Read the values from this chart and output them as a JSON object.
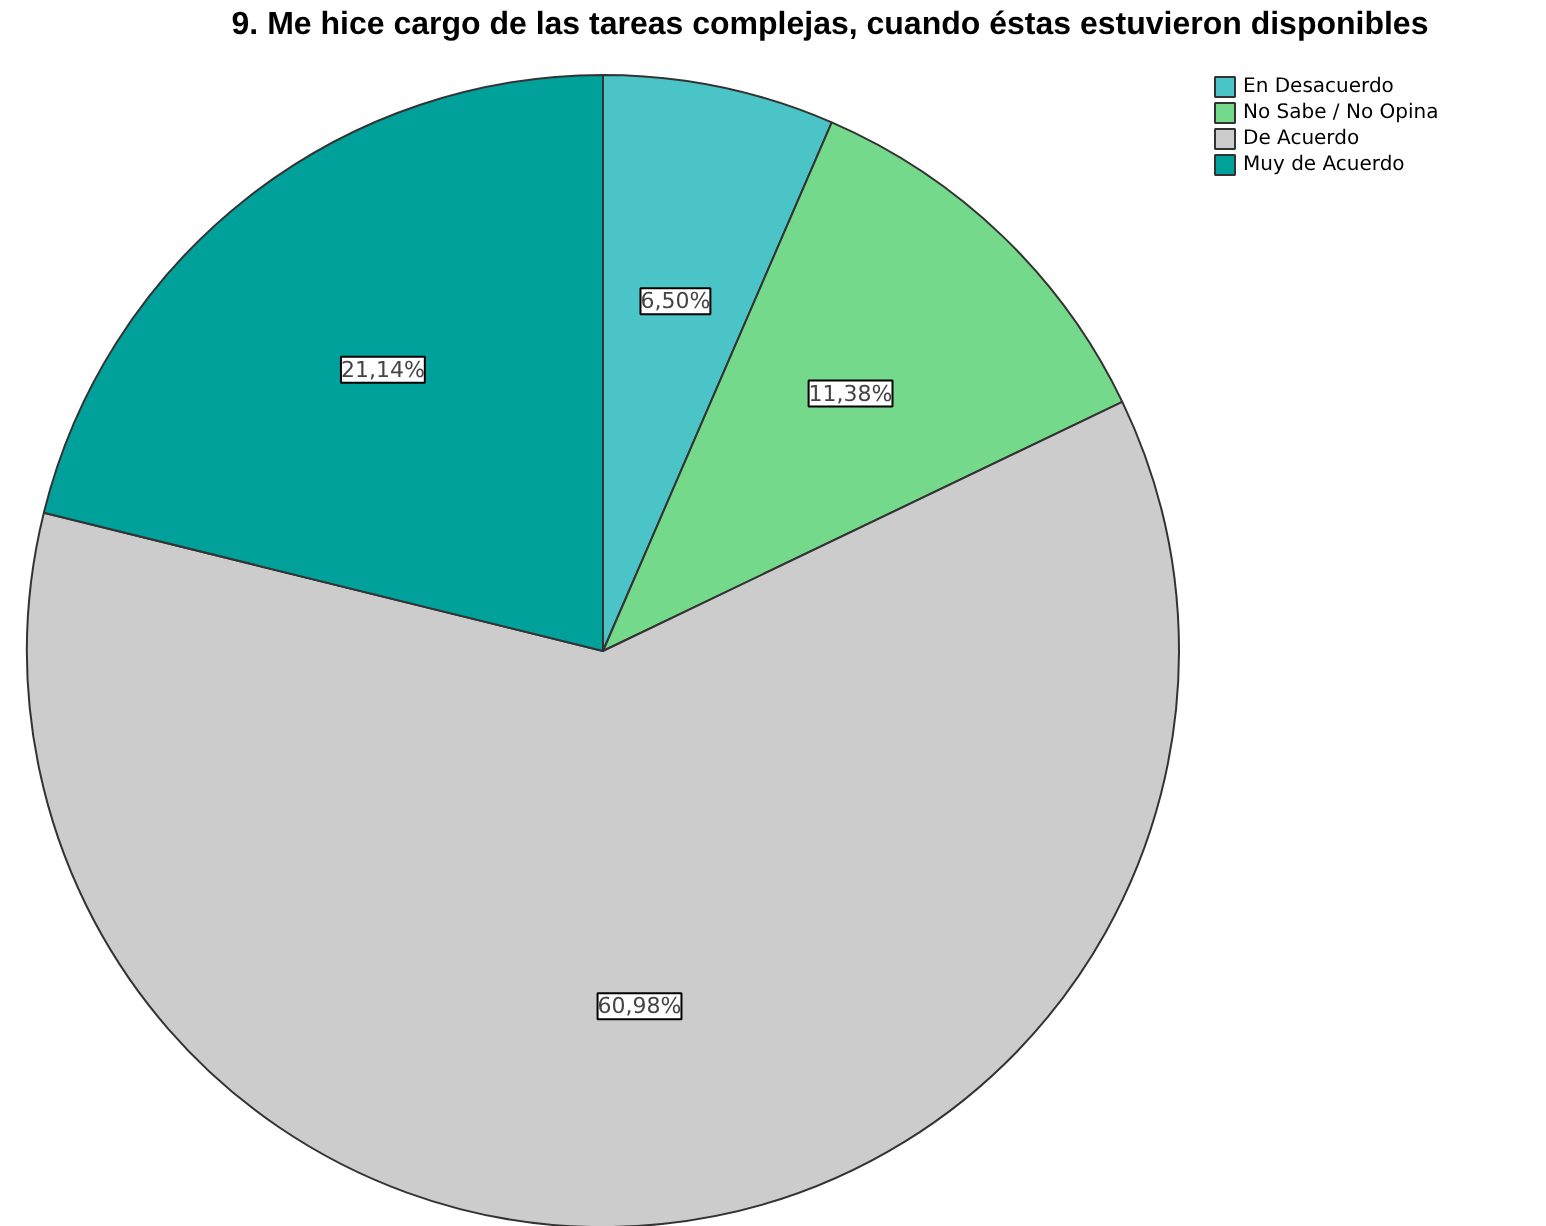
{
  "chart_data": {
    "type": "pie",
    "title": "9. Me hice cargo de las tareas complejas, cuando éstas estuvieron disponibles",
    "categories": [
      "En Desacuerdo",
      "No Sabe / No Opina",
      "De Acuerdo",
      "Muy de Acuerdo"
    ],
    "values": [
      6.5,
      11.38,
      60.98,
      21.14
    ],
    "value_labels": [
      "6,50%",
      "11,38%",
      "60,98%",
      "21,14%"
    ],
    "colors": [
      "#4bc4c8",
      "#74d98a",
      "#cccccc",
      "#00a19a"
    ],
    "legend": "top right"
  }
}
